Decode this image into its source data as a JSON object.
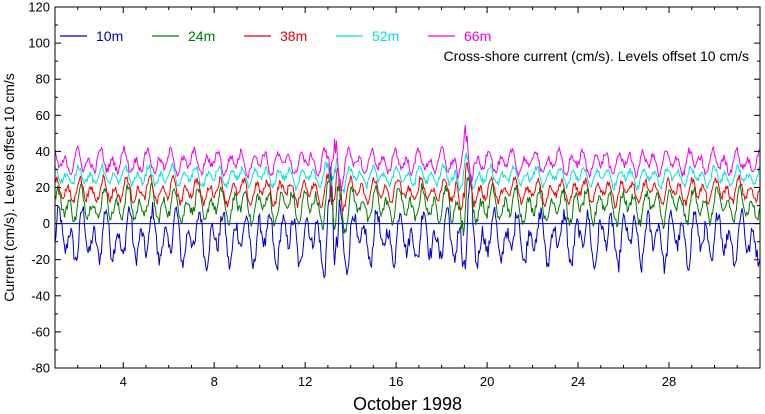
{
  "chart_data": {
    "type": "line",
    "xlabel": "October 1998",
    "ylabel": "Current (cm/s). Levels offset 10 cm/s",
    "annotation": "Cross-shore current (cm/s). Levels offset 10 cm/s",
    "xlim": [
      1,
      32
    ],
    "ylim": [
      -80,
      120
    ],
    "x_ticks": [
      4,
      8,
      12,
      16,
      20,
      24,
      28
    ],
    "y_ticks": [
      -80,
      -60,
      -40,
      -20,
      0,
      20,
      40,
      60,
      80,
      100,
      120
    ],
    "zero_line": 0,
    "legend_position": "top-left",
    "grid": false,
    "series": [
      {
        "name": "10m",
        "color": "#0000cc",
        "offset": 0,
        "amp": 11,
        "baseline": -8
      },
      {
        "name": "24m",
        "color": "#007a00",
        "offset": 10,
        "amp": 7,
        "baseline": 0
      },
      {
        "name": "38m",
        "color": "#ee0000",
        "offset": 20,
        "amp": 5,
        "baseline": -2
      },
      {
        "name": "52m",
        "color": "#00e0e0",
        "offset": 30,
        "amp": 4,
        "baseline": -4
      },
      {
        "name": "66m",
        "color": "#ee00ee",
        "offset": 40,
        "amp": 5,
        "baseline": -6
      }
    ]
  }
}
